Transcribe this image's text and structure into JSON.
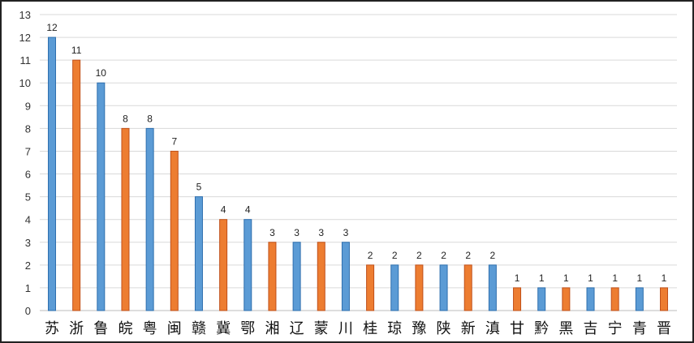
{
  "chart_data": {
    "type": "bar",
    "title": "",
    "xlabel": "",
    "ylabel": "",
    "ylim": [
      0,
      13
    ],
    "yticks": [
      0,
      1,
      2,
      3,
      4,
      5,
      6,
      7,
      8,
      9,
      10,
      11,
      12,
      13
    ],
    "grid": true,
    "legend": "none",
    "categories": [
      "苏",
      "浙",
      "鲁",
      "皖",
      "粤",
      "闽",
      "赣",
      "冀",
      "鄂",
      "湘",
      "辽",
      "蒙",
      "川",
      "桂",
      "琼",
      "豫",
      "陕",
      "新",
      "滇",
      "甘",
      "黔",
      "黑",
      "吉",
      "宁",
      "青",
      "晋"
    ],
    "values": [
      12,
      11,
      10,
      8,
      8,
      7,
      5,
      4,
      4,
      3,
      3,
      3,
      3,
      2,
      2,
      2,
      2,
      2,
      2,
      1,
      1,
      1,
      1,
      1,
      1,
      1
    ],
    "data_labels": true,
    "colors": [
      "#5b9bd5",
      "#ed7d31"
    ],
    "color_pattern": "alternating"
  }
}
